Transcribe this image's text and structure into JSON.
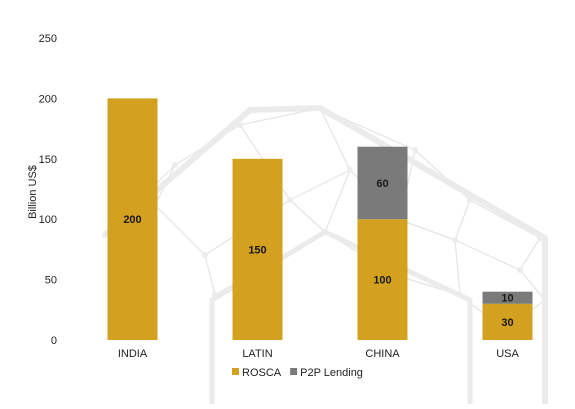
{
  "chart_data": {
    "type": "bar",
    "stacked": true,
    "categories": [
      "INDIA",
      "LATIN",
      "CHINA",
      "USA"
    ],
    "series": [
      {
        "name": "ROSCA",
        "values": [
          200,
          150,
          100,
          30
        ],
        "color": "#D4A01F"
      },
      {
        "name": "P2P Lending",
        "values": [
          0,
          0,
          60,
          10
        ],
        "color": "#7A7A7A"
      }
    ],
    "data_labels": [
      [
        "200",
        "150",
        "100",
        "30"
      ],
      [
        "",
        "",
        "60",
        "10"
      ]
    ],
    "title": "",
    "xlabel": "",
    "ylabel": "Billion US$",
    "ylim": [
      0,
      250
    ],
    "yticks": [
      0,
      50,
      100,
      150,
      200,
      250
    ],
    "grid": false,
    "legend": "bottom-center"
  }
}
